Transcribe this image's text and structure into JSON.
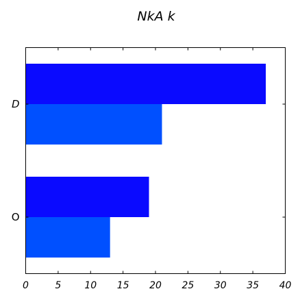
{
  "chart_data": {
    "type": "bar",
    "orientation": "horizontal",
    "title": "NkA   k",
    "xlabel": "",
    "ylabel": "",
    "categories": [
      "O",
      "D"
    ],
    "series": [
      {
        "values": [
          19,
          37
        ],
        "color": "#0a0aff"
      },
      {
        "values": [
          13,
          21
        ],
        "color": "#0050ff"
      }
    ],
    "xlim": [
      0,
      40
    ],
    "xticks": [
      0,
      5,
      10,
      15,
      20,
      25,
      30,
      35,
      40
    ],
    "category_label_styles": [
      "normal",
      "italic"
    ],
    "grid": false,
    "legend": "none"
  }
}
